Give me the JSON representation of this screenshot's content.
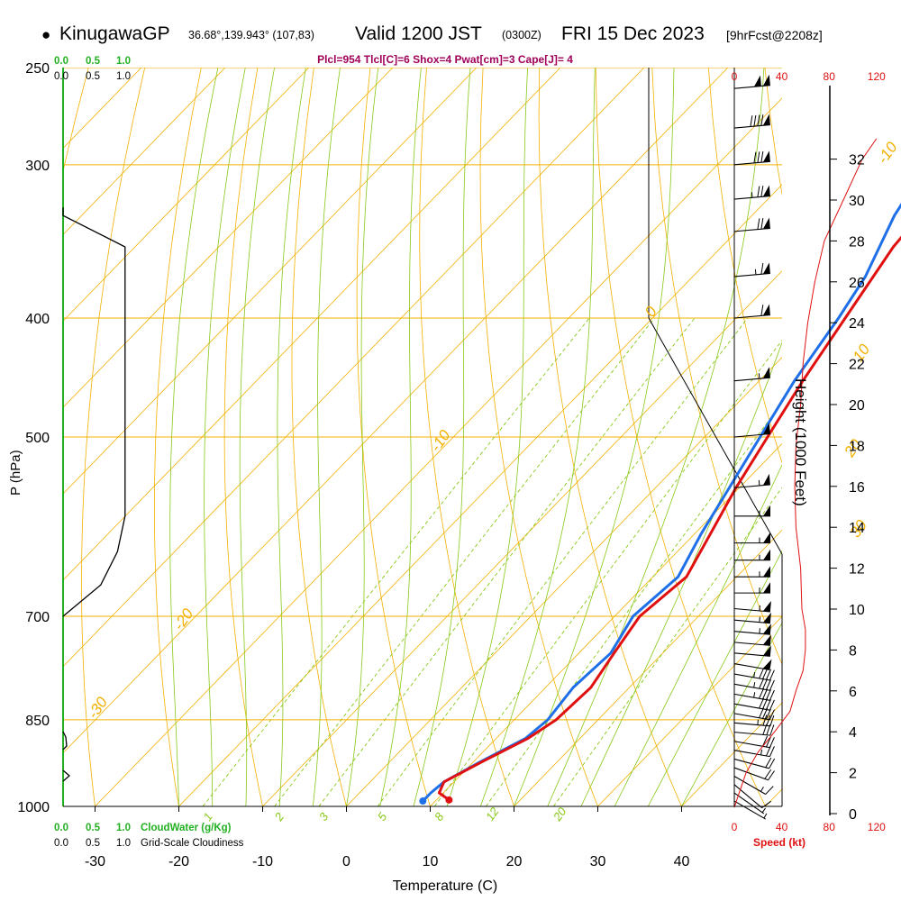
{
  "header": {
    "bullet": "●",
    "station": "KinugawaGP",
    "coords": "36.68°,139.943° (107,83)",
    "valid": "Valid 1200 JST",
    "zulu": "(0300Z)",
    "date": "FRI 15 Dec 2023",
    "forecast": "[9hrFcst@2208z]"
  },
  "indices": "Plcl=954 Tlcl[C]=6 Shox=4 Pwat[cm]=3 Cape[J]= 4",
  "colors": {
    "temperature": "#e01010",
    "dewpoint": "#1e6fe8",
    "isobar": "#f2b000",
    "dry_adiabat": "#f2b000",
    "moist_adiabat": "#88c818",
    "mixing_ratio": "#88c818",
    "cloudwater": "#22b022",
    "indices": "#a0005a",
    "speed": "#e01010"
  },
  "chart_data": {
    "type": "line",
    "title": "Skew-T log-P sounding",
    "xlabel": "Temperature (C)",
    "ylabel": "P (hPa)",
    "x_ticks": [
      -30,
      -20,
      -10,
      0,
      10,
      20,
      30,
      40
    ],
    "p_labels": [
      250,
      300,
      400,
      500,
      700,
      850,
      1000
    ],
    "isotherm_labels": [
      {
        "t": 0,
        "p": 330,
        "label": "0"
      },
      {
        "t": 10,
        "p": 435,
        "label": "10"
      },
      {
        "t": 20,
        "p": 520,
        "label": "20"
      },
      {
        "t": 30,
        "p": 605,
        "label": "30"
      },
      {
        "t": -10,
        "p": 300,
        "label": "-10"
      },
      {
        "t": -20,
        "p": 400,
        "label": "0"
      },
      {
        "t": -30,
        "p": 515,
        "label": "-10"
      },
      {
        "t": -40,
        "p": 720,
        "label": "-20"
      },
      {
        "t": -40,
        "p": 850,
        "label": "-30"
      }
    ],
    "mixing_ratio_labels": [
      "1",
      "2",
      "3",
      "5",
      "8",
      "12",
      "20"
    ],
    "temperature": [
      {
        "p": 988,
        "t": 11.5
      },
      {
        "p": 975,
        "t": 9.5
      },
      {
        "p": 955,
        "t": 8.8
      },
      {
        "p": 920,
        "t": 11.0
      },
      {
        "p": 880,
        "t": 13.8
      },
      {
        "p": 850,
        "t": 15.0
      },
      {
        "p": 800,
        "t": 15.4
      },
      {
        "p": 750,
        "t": 14.2
      },
      {
        "p": 700,
        "t": 13.0
      },
      {
        "p": 650,
        "t": 14.0
      },
      {
        "p": 600,
        "t": 11.9
      },
      {
        "p": 550,
        "t": 9.6
      },
      {
        "p": 500,
        "t": 7.5
      },
      {
        "p": 450,
        "t": 5.2
      },
      {
        "p": 400,
        "t": 3.0
      },
      {
        "p": 350,
        "t": 0.5
      },
      {
        "p": 320,
        "t": -0.2
      },
      {
        "p": 300,
        "t": -0.8
      },
      {
        "p": 265,
        "t": -1.3
      }
    ],
    "dewpoint": [
      {
        "p": 990,
        "t": 8.5
      },
      {
        "p": 975,
        "t": 8.5
      },
      {
        "p": 955,
        "t": 8.8
      },
      {
        "p": 920,
        "t": 10.8
      },
      {
        "p": 880,
        "t": 13.5
      },
      {
        "p": 850,
        "t": 14.0
      },
      {
        "p": 800,
        "t": 13.3
      },
      {
        "p": 750,
        "t": 13.8
      },
      {
        "p": 700,
        "t": 12.2
      },
      {
        "p": 650,
        "t": 13.0
      },
      {
        "p": 600,
        "t": 10.8
      },
      {
        "p": 550,
        "t": 8.8
      },
      {
        "p": 500,
        "t": 6.6
      },
      {
        "p": 450,
        "t": 4.2
      },
      {
        "p": 400,
        "t": 2.2
      },
      {
        "p": 370,
        "t": 0.6
      },
      {
        "p": 330,
        "t": -3.0
      },
      {
        "p": 300,
        "t": -5.0
      },
      {
        "p": 265,
        "t": -8.0
      }
    ],
    "cloudwater": {
      "label": "CloudWater (g/Kg)",
      "ticks": [
        "0.0",
        "0.5",
        "1.0"
      ]
    },
    "cloudiness": {
      "label": "Grid-Scale Cloudiness",
      "ticks": [
        "0.0",
        "0.5",
        "1.0"
      ],
      "profile": [
        {
          "p": 330,
          "c": 0.0
        },
        {
          "p": 350,
          "c": 0.74
        },
        {
          "p": 400,
          "c": 0.74
        },
        {
          "p": 500,
          "c": 0.74
        },
        {
          "p": 580,
          "c": 0.74
        },
        {
          "p": 620,
          "c": 0.65
        },
        {
          "p": 660,
          "c": 0.45
        },
        {
          "p": 700,
          "c": 0.0
        }
      ]
    },
    "wind_speed": {
      "label": "Speed (kt)",
      "ticks": [
        0,
        40,
        80,
        120
      ],
      "profile": [
        {
          "h": 0.3,
          "v": 0
        },
        {
          "h": 1.0,
          "v": 4
        },
        {
          "h": 2.0,
          "v": 10
        },
        {
          "h": 3.0,
          "v": 20
        },
        {
          "h": 4.0,
          "v": 34
        },
        {
          "h": 5.0,
          "v": 47
        },
        {
          "h": 6.0,
          "v": 52
        },
        {
          "h": 7.0,
          "v": 58
        },
        {
          "h": 8.0,
          "v": 60
        },
        {
          "h": 9.0,
          "v": 60
        },
        {
          "h": 10.0,
          "v": 57
        },
        {
          "h": 12.0,
          "v": 56
        },
        {
          "h": 14.0,
          "v": 52
        },
        {
          "h": 16.0,
          "v": 51
        },
        {
          "h": 18.0,
          "v": 52
        },
        {
          "h": 20.0,
          "v": 56
        },
        {
          "h": 22.0,
          "v": 58
        },
        {
          "h": 24.0,
          "v": 62
        },
        {
          "h": 26.0,
          "v": 68
        },
        {
          "h": 28.0,
          "v": 76
        },
        {
          "h": 30.0,
          "v": 92
        },
        {
          "h": 32.0,
          "v": 108
        },
        {
          "h": 33.0,
          "v": 120
        }
      ]
    },
    "height_axis": {
      "label": "Height (1000 Feet)",
      "ticks": [
        0,
        2,
        4,
        6,
        8,
        10,
        12,
        14,
        16,
        18,
        20,
        22,
        24,
        26,
        28,
        30,
        32
      ]
    },
    "barbs": [
      {
        "p": 990,
        "dir": 300,
        "spd": 5
      },
      {
        "p": 975,
        "dir": 305,
        "spd": 8
      },
      {
        "p": 960,
        "dir": 310,
        "spd": 10
      },
      {
        "p": 945,
        "dir": 300,
        "spd": 15
      },
      {
        "p": 930,
        "dir": 290,
        "spd": 20
      },
      {
        "p": 915,
        "dir": 285,
        "spd": 20
      },
      {
        "p": 900,
        "dir": 280,
        "spd": 25
      },
      {
        "p": 885,
        "dir": 280,
        "spd": 30
      },
      {
        "p": 870,
        "dir": 275,
        "spd": 30
      },
      {
        "p": 855,
        "dir": 275,
        "spd": 35
      },
      {
        "p": 840,
        "dir": 280,
        "spd": 40
      },
      {
        "p": 825,
        "dir": 280,
        "spd": 40
      },
      {
        "p": 810,
        "dir": 280,
        "spd": 45
      },
      {
        "p": 795,
        "dir": 280,
        "spd": 45
      },
      {
        "p": 780,
        "dir": 280,
        "spd": 45
      },
      {
        "p": 765,
        "dir": 280,
        "spd": 50
      },
      {
        "p": 750,
        "dir": 275,
        "spd": 50
      },
      {
        "p": 735,
        "dir": 275,
        "spd": 50
      },
      {
        "p": 720,
        "dir": 275,
        "spd": 55
      },
      {
        "p": 705,
        "dir": 275,
        "spd": 55
      },
      {
        "p": 690,
        "dir": 275,
        "spd": 55
      },
      {
        "p": 670,
        "dir": 270,
        "spd": 55
      },
      {
        "p": 650,
        "dir": 270,
        "spd": 55
      },
      {
        "p": 630,
        "dir": 270,
        "spd": 55
      },
      {
        "p": 610,
        "dir": 270,
        "spd": 55
      },
      {
        "p": 580,
        "dir": 270,
        "spd": 55
      },
      {
        "p": 550,
        "dir": 265,
        "spd": 55
      },
      {
        "p": 500,
        "dir": 265,
        "spd": 50
      },
      {
        "p": 450,
        "dir": 265,
        "spd": 55
      },
      {
        "p": 400,
        "dir": 265,
        "spd": 60
      },
      {
        "p": 370,
        "dir": 265,
        "spd": 65
      },
      {
        "p": 340,
        "dir": 265,
        "spd": 70
      },
      {
        "p": 320,
        "dir": 265,
        "spd": 75
      },
      {
        "p": 300,
        "dir": 265,
        "spd": 80
      },
      {
        "p": 280,
        "dir": 265,
        "spd": 90
      },
      {
        "p": 260,
        "dir": 265,
        "spd": 100
      }
    ]
  }
}
